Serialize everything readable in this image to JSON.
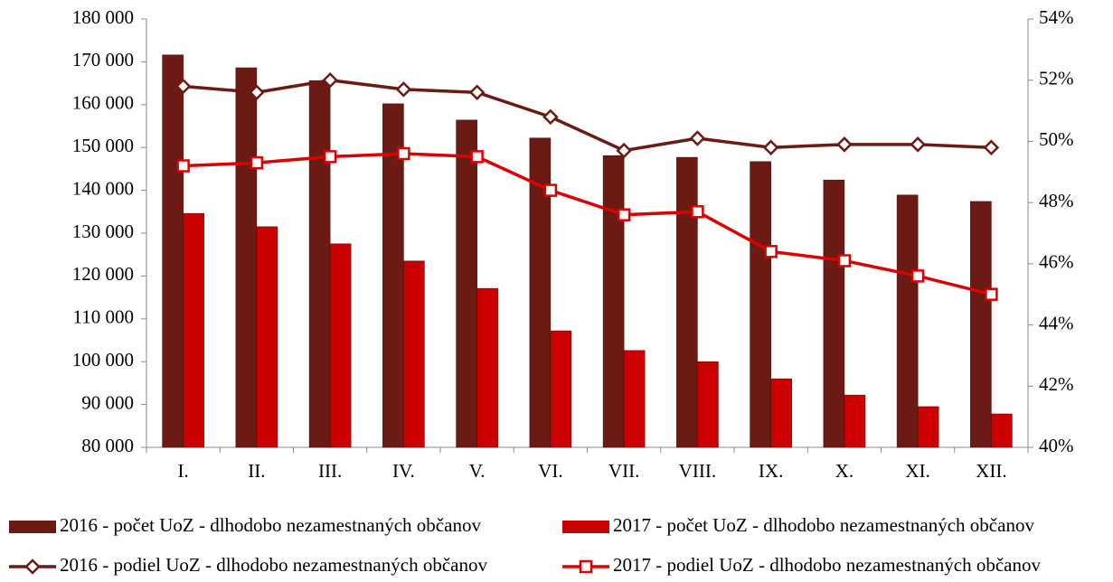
{
  "chart_data": {
    "type": "bar",
    "categories": [
      "I.",
      "II.",
      "III.",
      "IV.",
      "V.",
      "VI.",
      "VII.",
      "VIII.",
      "IX.",
      "X.",
      "XI.",
      "XII."
    ],
    "series": [
      {
        "name": "2016 - počet UoZ - dlhodobo nezamestnaných občanov",
        "type": "bar",
        "color": "#6b1a14",
        "values": [
          171600,
          168600,
          165600,
          160200,
          156400,
          152200,
          148100,
          147700,
          146700,
          142400,
          138900,
          137400
        ]
      },
      {
        "name": "2017 - počet UoZ - dlhodobo nezamestnaných občanov",
        "type": "bar",
        "color": "#cc0000",
        "values": [
          134600,
          131500,
          127500,
          123500,
          117100,
          107200,
          102600,
          100000,
          96000,
          92200,
          89500,
          87800
        ]
      },
      {
        "name": "2016 - podiel UoZ - dlhodobo nezamestnaných občanov",
        "type": "line",
        "marker": "diamond",
        "axis": "y2",
        "color": "#6b1a14",
        "values": [
          51.8,
          51.6,
          52.0,
          51.7,
          51.6,
          50.8,
          49.7,
          50.1,
          49.8,
          49.9,
          49.9,
          49.8
        ]
      },
      {
        "name": "2017 - podiel UoZ - dlhodobo nezamestnaných občanov",
        "type": "line",
        "marker": "square",
        "axis": "y2",
        "color": "#dd0000",
        "values": [
          49.2,
          49.3,
          49.5,
          49.6,
          49.5,
          48.4,
          47.6,
          47.7,
          46.4,
          46.1,
          45.6,
          45.0
        ]
      }
    ],
    "ylim": [
      80000,
      180000
    ],
    "yticks": [
      {
        "value": 80000,
        "label": "80 000"
      },
      {
        "value": 90000,
        "label": "90 000"
      },
      {
        "value": 100000,
        "label": "100 000"
      },
      {
        "value": 110000,
        "label": "110 000"
      },
      {
        "value": 120000,
        "label": "120 000"
      },
      {
        "value": 130000,
        "label": "130 000"
      },
      {
        "value": 140000,
        "label": "140 000"
      },
      {
        "value": 150000,
        "label": "150 000"
      },
      {
        "value": 160000,
        "label": "160 000"
      },
      {
        "value": 170000,
        "label": "170 000"
      },
      {
        "value": 180000,
        "label": "180 000"
      }
    ],
    "y2lim": [
      40,
      54
    ],
    "y2ticks": [
      {
        "value": 40,
        "label": "40%"
      },
      {
        "value": 42,
        "label": "42%"
      },
      {
        "value": 44,
        "label": "44%"
      },
      {
        "value": 46,
        "label": "46%"
      },
      {
        "value": 48,
        "label": "48%"
      },
      {
        "value": 50,
        "label": "50%"
      },
      {
        "value": 52,
        "label": "52%"
      },
      {
        "value": 54,
        "label": "54%"
      }
    ],
    "legend": "bottom"
  }
}
